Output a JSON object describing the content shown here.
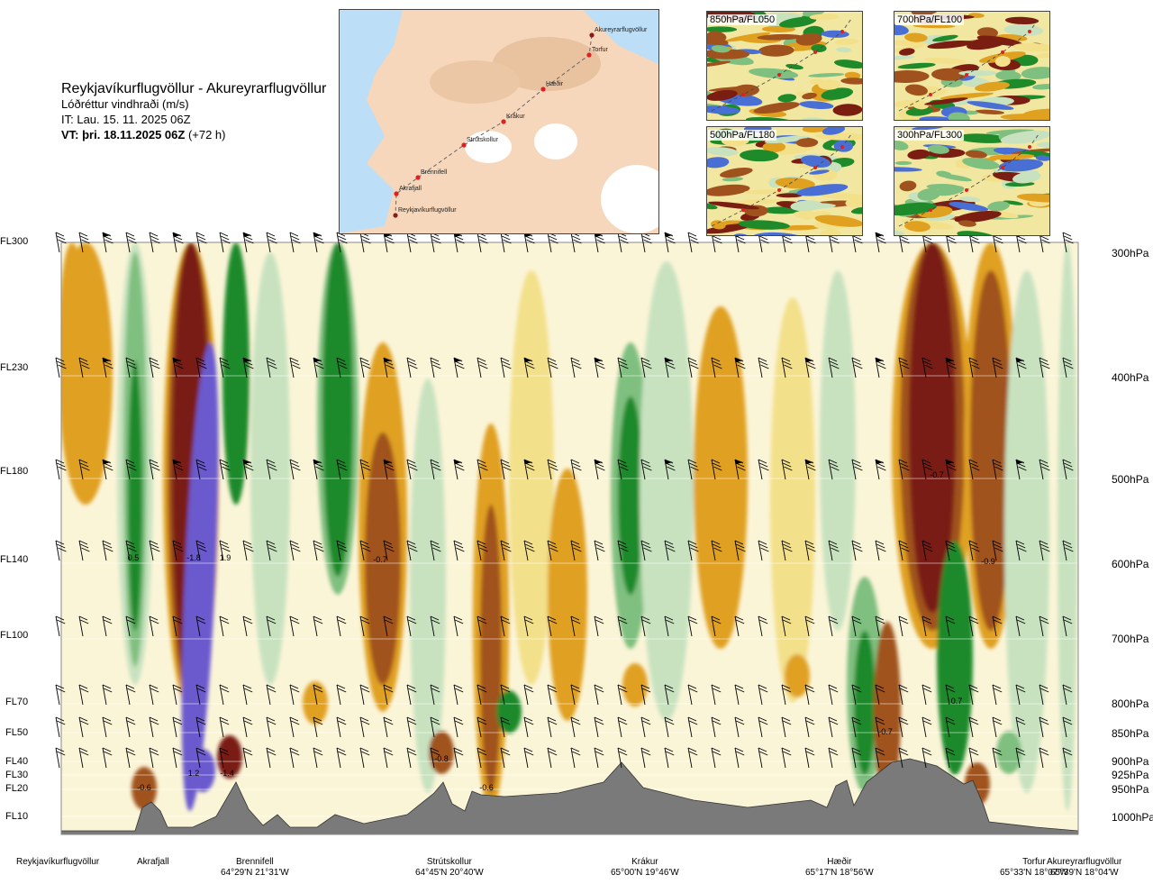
{
  "header": {
    "route": "Reykjavíkurflugvöllur - Akureyrarflugvöllur",
    "variable": "Lóðréttur vindhraði (m/s)",
    "issue_time": "IT: Lau. 15. 11. 2025 06Z",
    "valid_prefix": "VT: þri. 18.11.2025 06Z",
    "valid_suffix": "(+72 h)"
  },
  "flight_levels": [
    "FL300",
    "FL230",
    "FL180",
    "FL140",
    "FL100",
    "FL70",
    "FL50",
    "FL40",
    "FL30",
    "FL20",
    "FL10"
  ],
  "pressure_levels": [
    "300hPa",
    "400hPa",
    "500hPa",
    "600hPa",
    "700hPa",
    "800hPa",
    "850hPa",
    "900hPa",
    "925hPa",
    "950hPa",
    "1000hPa"
  ],
  "stations": [
    {
      "name": "Reykjavíkurflugvöllur",
      "coord": ""
    },
    {
      "name": "Akrafjall",
      "coord": ""
    },
    {
      "name": "Brennifell",
      "coord": "64°29'N 21°31'W"
    },
    {
      "name": "Strútskollur",
      "coord": "64°45'N 20°40'W"
    },
    {
      "name": "Krákur",
      "coord": "65°00'N 19°46'W"
    },
    {
      "name": "Hæðir",
      "coord": "65°17'N 18°56'W"
    },
    {
      "name": "Torfur",
      "coord": "65°33'N 18°07'W"
    },
    {
      "name": "Akureyrarflugvöllur",
      "coord": "65°39'N 18°04'W"
    }
  ],
  "route_map": {
    "labels": [
      "Akureyrarflugvöllur",
      "Torfur",
      "Hæðir",
      "Krákur",
      "Strútskollur",
      "Brennifell",
      "Akrafjall",
      "Reykjavíkurflugvöllur"
    ]
  },
  "mini_maps": [
    "850hPa/FL050",
    "700hPa/FL100",
    "500hPa/FL180",
    "300hPa/FL300"
  ],
  "colors": {
    "strong_down": "#7a1e12",
    "down": "#a0521e",
    "weak_down": "#e0a020",
    "slight_down": "#f3e08a",
    "neutral": "#fbf5d8",
    "slight_up": "#c8e2c0",
    "weak_up": "#7fbf7f",
    "up": "#1f8a2a",
    "strong_up": "#6a5acd",
    "terrain": "#7a7a7a"
  },
  "chart_data": {
    "type": "heatmap",
    "title": "Reykjavíkurflugvöllur - Akureyrarflugvöllur",
    "subtitle": "Lóðréttur vindhraði (m/s)",
    "y_flight_levels": [
      "FL300",
      "FL230",
      "FL180",
      "FL140",
      "FL100",
      "FL70",
      "FL50",
      "FL40",
      "FL30",
      "FL20",
      "FL10"
    ],
    "y_pressure_hpa": [
      300,
      400,
      500,
      600,
      700,
      800,
      850,
      900,
      925,
      950,
      1000
    ],
    "x_stations": [
      "Reykjavíkurflugvöllur",
      "Akrafjall",
      "Brennifell",
      "Strútskollur",
      "Krákur",
      "Hæðir",
      "Torfur",
      "Akureyrarflugvöllur"
    ],
    "value_labels": [
      "0.5",
      "-1.8",
      "1.9",
      "-0.7",
      "-0.7",
      "-0.9",
      "-0.6",
      "1.2",
      "-1.4",
      "-0.8",
      "-0.6",
      "-0.7",
      "0.7"
    ]
  }
}
